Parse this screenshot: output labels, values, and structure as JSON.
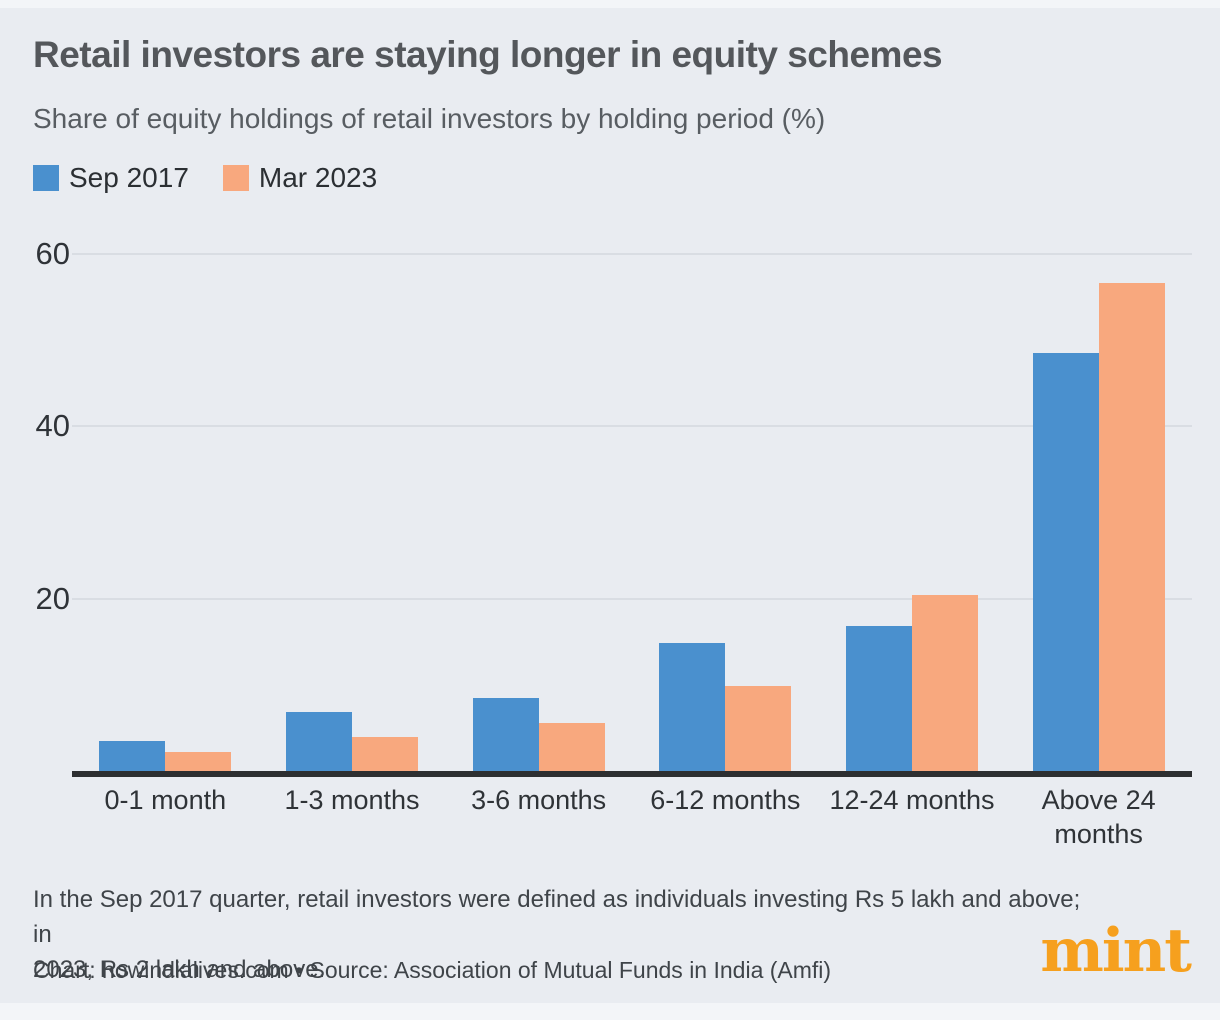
{
  "header": {
    "title": "Retail investors are staying longer in equity schemes",
    "subtitle": "Share of equity holdings of retail investors by holding period (%)"
  },
  "legend": {
    "items": [
      {
        "label": "Sep 2017",
        "color": "#4A90CE"
      },
      {
        "label": "Mar 2023",
        "color": "#F8A87E"
      }
    ]
  },
  "chart_data": {
    "type": "bar",
    "title": "Retail investors are staying longer in equity schemes",
    "subtitle": "Share of equity holdings of retail investors by holding period (%)",
    "categories": [
      "0-1 month",
      "1-3 months",
      "3-6 months",
      "6-12 months",
      "12-24 months",
      "Above 24\nmonths"
    ],
    "series": [
      {
        "name": "Sep 2017",
        "color": "#4A90CE",
        "values": [
          3.5,
          6.8,
          8.5,
          14.9,
          16.8,
          48.5
        ]
      },
      {
        "name": "Mar 2023",
        "color": "#F8A87E",
        "values": [
          2.2,
          3.9,
          5.6,
          9.9,
          20.4,
          56.6
        ]
      }
    ],
    "xlabel": "",
    "ylabel": "",
    "y_ticks": [
      20,
      40,
      60
    ],
    "ylim": [
      0,
      62
    ],
    "grid": true,
    "legend_position": "top-left"
  },
  "footnote": {
    "lines": [
      "In the Sep 2017 quarter, retail investors were defined as individuals investing Rs 5 lakh and above; in",
      "2023, Rs 2 lakh and above."
    ]
  },
  "source": {
    "text": "Chart: howindialives.com • Source: Association of Mutual Funds in India (Amfi)"
  },
  "logo": {
    "text": "mint",
    "color": "#F6A01E"
  },
  "colors": {
    "background": "#E9ECF1",
    "edge_strip": "#F3F5F8",
    "gridline": "#D9DDE3",
    "axis": "#2D2F31",
    "bar_blue": "#4A90CE",
    "bar_orange": "#F8A87E"
  }
}
